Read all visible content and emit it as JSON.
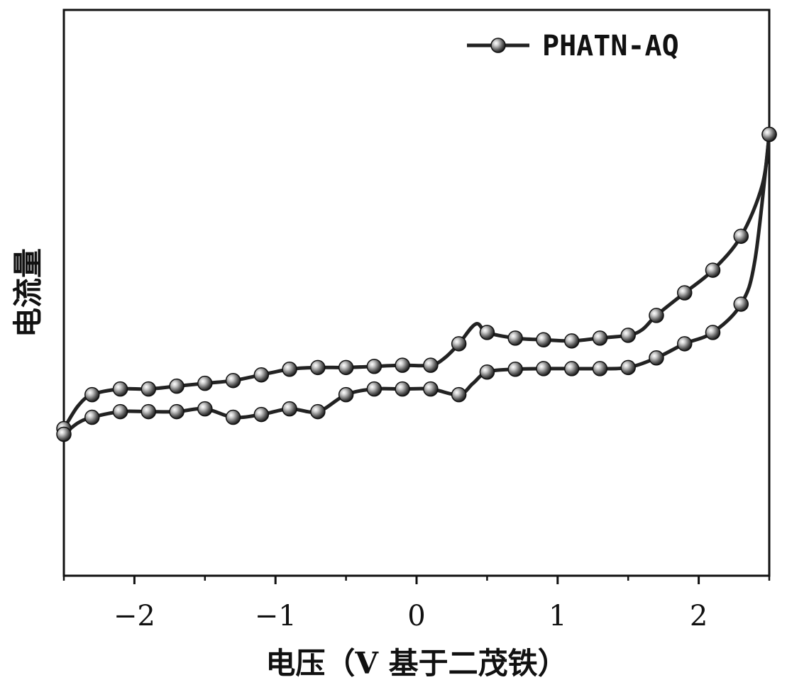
{
  "chart_data": {
    "type": "line",
    "xlabel": "电压（V 基于二茂铁）",
    "ylabel": "电流量",
    "xlim": [
      -2.5,
      2.5
    ],
    "ylim": [
      0,
      10
    ],
    "y_ticks_labeled": false,
    "x_ticks": [
      -2,
      -1,
      0,
      1,
      2
    ],
    "x_tick_labels": [
      "−2",
      "−1",
      "0",
      "1",
      "2"
    ],
    "grid": false,
    "legend": {
      "position": "top-right"
    },
    "series": [
      {
        "name": "PHATN-AQ",
        "marker": "sphere",
        "color": "#222222",
        "segments": [
          {
            "part": "upper",
            "x": [
              -2.5,
              -2.3,
              -2.1,
              -1.9,
              -1.7,
              -1.5,
              -1.3,
              -1.1,
              -0.9,
              -0.7,
              -0.5,
              -0.3,
              -0.1,
              0.1,
              0.3,
              0.5,
              0.7,
              0.9,
              1.1,
              1.3,
              1.5,
              1.7,
              1.9,
              2.1,
              2.3,
              2.5
            ],
            "y": [
              2.6,
              3.2,
              3.3,
              3.3,
              3.35,
              3.4,
              3.45,
              3.55,
              3.65,
              3.68,
              3.68,
              3.7,
              3.72,
              3.72,
              4.1,
              4.3,
              4.2,
              4.17,
              4.15,
              4.2,
              4.25,
              4.6,
              5.0,
              5.4,
              6.0,
              7.8
            ],
            "curve_x": [
              -2.5,
              -2.4,
              -2.3,
              -2.1,
              -1.9,
              -1.7,
              -1.5,
              -1.3,
              -1.1,
              -0.9,
              -0.7,
              -0.5,
              -0.3,
              -0.1,
              0.1,
              0.2,
              0.3,
              0.42,
              0.5,
              0.7,
              0.9,
              1.1,
              1.3,
              1.5,
              1.6,
              1.7,
              1.9,
              2.1,
              2.3,
              2.45,
              2.5
            ],
            "curve_y": [
              2.6,
              3.0,
              3.2,
              3.3,
              3.3,
              3.35,
              3.4,
              3.45,
              3.55,
              3.65,
              3.68,
              3.68,
              3.7,
              3.72,
              3.72,
              3.85,
              4.1,
              4.45,
              4.3,
              4.2,
              4.17,
              4.15,
              4.2,
              4.25,
              4.35,
              4.6,
              5.0,
              5.4,
              6.0,
              6.9,
              7.8
            ]
          },
          {
            "part": "lower",
            "x": [
              -2.5,
              -2.3,
              -2.1,
              -1.9,
              -1.7,
              -1.5,
              -1.3,
              -1.1,
              -0.9,
              -0.7,
              -0.5,
              -0.3,
              -0.1,
              0.1,
              0.3,
              0.5,
              0.7,
              0.9,
              1.1,
              1.3,
              1.5,
              1.7,
              1.9,
              2.1,
              2.3,
              2.5
            ],
            "y": [
              2.5,
              2.8,
              2.9,
              2.9,
              2.9,
              2.95,
              2.8,
              2.85,
              2.95,
              2.9,
              3.2,
              3.3,
              3.3,
              3.3,
              3.2,
              3.6,
              3.65,
              3.66,
              3.66,
              3.66,
              3.68,
              3.85,
              4.1,
              4.3,
              4.8,
              7.8
            ],
            "curve_x": [
              -2.5,
              -2.4,
              -2.3,
              -2.1,
              -1.9,
              -1.7,
              -1.5,
              -1.3,
              -1.1,
              -0.9,
              -0.7,
              -0.5,
              -0.3,
              -0.1,
              0.1,
              0.3,
              0.4,
              0.5,
              0.7,
              0.9,
              1.1,
              1.3,
              1.5,
              1.7,
              1.9,
              2.1,
              2.3,
              2.4,
              2.5
            ],
            "curve_y": [
              2.5,
              2.7,
              2.8,
              2.9,
              2.9,
              2.9,
              2.95,
              2.8,
              2.85,
              2.95,
              2.9,
              3.2,
              3.3,
              3.3,
              3.3,
              3.2,
              3.4,
              3.6,
              3.65,
              3.66,
              3.66,
              3.66,
              3.68,
              3.85,
              4.1,
              4.3,
              4.8,
              5.6,
              7.8
            ]
          }
        ]
      }
    ]
  }
}
